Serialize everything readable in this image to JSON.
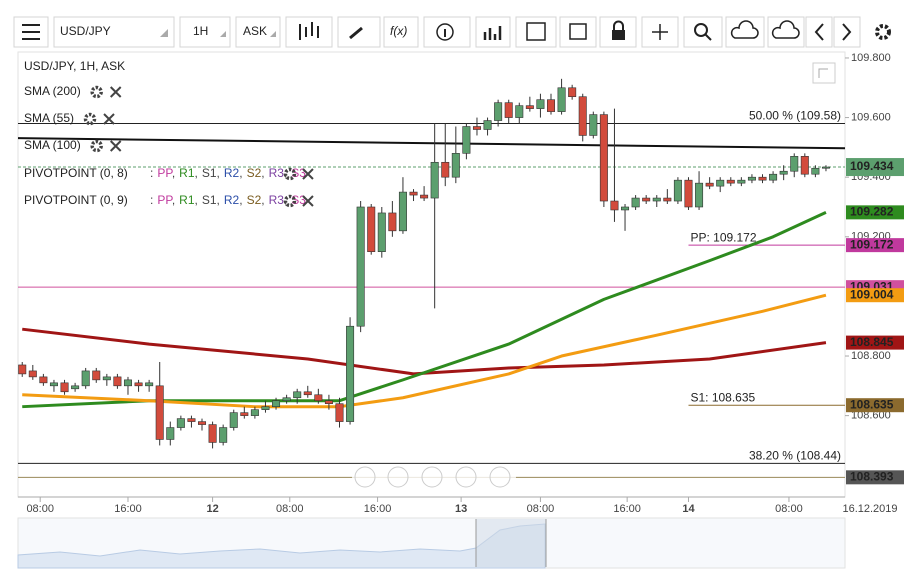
{
  "toolbar": {
    "symbol": "USD/JPY",
    "interval": "1H",
    "price_side": "ASK",
    "function_label": "f(x)"
  },
  "legend": {
    "heading": "USD/JPY, 1H, ASK",
    "indicators": [
      {
        "label": "SMA (200)",
        "color": "#a01515"
      },
      {
        "label": "SMA (55)",
        "color": "#2e8b1f"
      },
      {
        "label": "SMA (100)",
        "color": "#f39c12"
      }
    ],
    "pivots": [
      {
        "label": "PIVOTPOINT (0, 8)"
      },
      {
        "label": "PIVOTPOINT (0, 9)"
      }
    ],
    "pivot_lead": ":",
    "pivot_separator": ",",
    "pivot_levels": [
      {
        "name": "PP",
        "color": "#c0399d"
      },
      {
        "name": "R1",
        "color": "#2e8b1f"
      },
      {
        "name": "S1",
        "color": "#444444"
      },
      {
        "name": "R2",
        "color": "#2b4ea8"
      },
      {
        "name": "S2",
        "color": "#7a5c20"
      },
      {
        "name": "R3",
        "color": "#7b3fa0"
      },
      {
        "name": "S3",
        "color": "#c0399d"
      }
    ]
  },
  "chart_data": {
    "type": "candlestick",
    "up_color": "#5c9f6e",
    "down_color": "#d24b3c",
    "open": [
      108.77,
      108.75,
      108.73,
      108.7,
      108.71,
      108.69,
      108.7,
      108.75,
      108.72,
      108.73,
      108.7,
      108.71,
      108.7,
      108.7,
      108.52,
      108.56,
      108.59,
      108.58,
      108.57,
      108.51,
      108.56,
      108.61,
      108.6,
      108.62,
      108.63,
      108.65,
      108.66,
      108.68,
      108.67,
      108.65,
      108.64,
      108.58,
      108.9,
      109.3,
      109.15,
      109.28,
      109.22,
      109.35,
      109.34,
      109.33,
      109.45,
      109.4,
      109.48,
      109.57,
      109.56,
      109.59,
      109.65,
      109.6,
      109.64,
      109.63,
      109.66,
      109.62,
      109.7,
      109.67,
      109.54,
      109.61,
      109.32,
      109.29,
      109.3,
      109.33,
      109.32,
      109.33,
      109.32,
      109.39,
      109.3,
      109.38,
      109.37,
      109.39,
      109.38,
      109.39,
      109.4,
      109.39,
      109.41,
      109.42,
      109.47,
      109.41,
      109.43
    ],
    "high": [
      108.78,
      108.77,
      108.74,
      108.72,
      108.72,
      108.71,
      108.76,
      108.76,
      108.74,
      108.74,
      108.73,
      108.72,
      108.72,
      108.78,
      108.58,
      108.6,
      108.6,
      108.59,
      108.58,
      108.57,
      108.62,
      108.63,
      108.63,
      108.65,
      108.66,
      108.67,
      108.69,
      108.7,
      108.69,
      108.67,
      108.66,
      108.93,
      109.32,
      109.31,
      109.3,
      109.32,
      109.4,
      109.36,
      109.37,
      109.58,
      109.58,
      109.57,
      109.58,
      109.6,
      109.6,
      109.66,
      109.66,
      109.65,
      109.67,
      109.68,
      109.68,
      109.73,
      109.71,
      109.68,
      109.62,
      109.62,
      109.63,
      109.31,
      109.34,
      109.34,
      109.34,
      109.36,
      109.4,
      109.4,
      109.42,
      109.4,
      109.4,
      109.4,
      109.4,
      109.41,
      109.41,
      109.42,
      109.44,
      109.48,
      109.48,
      109.44,
      109.44
    ],
    "low": [
      108.73,
      108.72,
      108.7,
      108.68,
      108.67,
      108.68,
      108.69,
      108.71,
      108.7,
      108.69,
      108.67,
      108.68,
      108.68,
      108.5,
      108.5,
      108.55,
      108.56,
      108.55,
      108.49,
      108.5,
      108.55,
      108.59,
      108.59,
      108.61,
      108.62,
      108.64,
      108.64,
      108.66,
      108.64,
      108.62,
      108.56,
      108.57,
      108.88,
      109.14,
      109.13,
      109.2,
      109.21,
      109.32,
      109.32,
      108.96,
      109.37,
      109.38,
      109.46,
      109.54,
      109.54,
      109.57,
      109.58,
      109.58,
      109.62,
      109.6,
      109.61,
      109.61,
      109.66,
      109.52,
      109.53,
      109.3,
      109.25,
      109.22,
      109.29,
      109.31,
      109.3,
      109.31,
      109.31,
      109.29,
      109.29,
      109.36,
      109.35,
      109.37,
      109.37,
      109.38,
      109.38,
      109.38,
      109.39,
      109.4,
      109.4,
      109.4,
      109.42
    ],
    "close": [
      108.74,
      108.73,
      108.71,
      108.71,
      108.68,
      108.7,
      108.75,
      108.72,
      108.73,
      108.7,
      108.72,
      108.7,
      108.71,
      108.52,
      108.56,
      108.59,
      108.58,
      108.57,
      108.51,
      108.56,
      108.61,
      108.6,
      108.62,
      108.63,
      108.65,
      108.66,
      108.68,
      108.67,
      108.65,
      108.64,
      108.58,
      108.9,
      109.3,
      109.15,
      109.28,
      109.22,
      109.35,
      109.34,
      109.33,
      109.45,
      109.4,
      109.48,
      109.57,
      109.56,
      109.59,
      109.65,
      109.6,
      109.64,
      109.63,
      109.66,
      109.62,
      109.7,
      109.67,
      109.54,
      109.61,
      109.32,
      109.29,
      109.3,
      109.33,
      109.32,
      109.33,
      109.32,
      109.39,
      109.3,
      109.38,
      109.37,
      109.39,
      109.38,
      109.39,
      109.4,
      109.39,
      109.41,
      109.42,
      109.47,
      109.41,
      109.43,
      109.434
    ],
    "smas": [
      {
        "name": "SMA (200)",
        "color": "#a01515",
        "x": [
          0,
          12,
          27,
          37,
          46,
          55,
          65,
          76
        ],
        "values": [
          108.89,
          108.84,
          108.79,
          108.74,
          108.76,
          108.77,
          108.79,
          108.845
        ]
      },
      {
        "name": "SMA (55)",
        "color": "#2e8b1f",
        "x": [
          0,
          12,
          30,
          36,
          46,
          55,
          65,
          71,
          76
        ],
        "values": [
          108.63,
          108.65,
          108.65,
          108.72,
          108.84,
          108.99,
          109.12,
          109.2,
          109.282
        ]
      },
      {
        "name": "SMA (100)",
        "color": "#f39c12",
        "x": [
          0,
          12,
          22,
          30,
          36,
          46,
          51,
          60,
          70,
          76
        ],
        "values": [
          108.67,
          108.65,
          108.63,
          108.63,
          108.66,
          108.74,
          108.8,
          108.87,
          108.95,
          109.004
        ]
      }
    ],
    "trendline": {
      "x": [
        -0.4,
        77.8
      ],
      "values": [
        109.531,
        109.497
      ],
      "color": "#111111"
    },
    "levels": [
      {
        "value": 109.58,
        "label": "50.00 % (109.58)",
        "color": "#222222",
        "start": -0.4
      },
      {
        "value": 109.172,
        "label": "PP: 109.172",
        "color": "#c0399d",
        "start": 63
      },
      {
        "value": 109.031,
        "color": "#d0509e",
        "start": -0.4
      },
      {
        "value": 108.635,
        "label": "S1: 108.635",
        "color": "#8b6a2e",
        "start": 63
      },
      {
        "value": 108.44,
        "label": "38.20 % (108.44)",
        "color": "#222222",
        "start": -0.4
      },
      {
        "value": 108.393,
        "color": "#9a8a5a",
        "start": -0.4
      }
    ],
    "current_price": 109.434,
    "price_tags": [
      {
        "value": 109.434,
        "color": "#5c9f6e"
      },
      {
        "value": 109.282,
        "color": "#2e8b1f"
      },
      {
        "value": 109.172,
        "color": "#c0399d"
      },
      {
        "value": 109.031,
        "color": "#d0509e"
      },
      {
        "value": 109.004,
        "color": "#f39c12"
      },
      {
        "value": 108.845,
        "color": "#a01515"
      },
      {
        "value": 108.635,
        "color": "#8b6a2e"
      },
      {
        "value": 108.393,
        "color": "#555555"
      }
    ],
    "xlim": [
      -0.4,
      77.8
    ],
    "xticks": [
      {
        "value": 1.7,
        "label": "08:00"
      },
      {
        "value": 10,
        "label": "16:00"
      },
      {
        "value": 18,
        "label": "12"
      },
      {
        "value": 25.3,
        "label": "08:00"
      },
      {
        "value": 33.6,
        "label": "16:00"
      },
      {
        "value": 41.5,
        "label": "13"
      },
      {
        "value": 49,
        "label": "08:00"
      },
      {
        "value": 57.2,
        "label": "16:00"
      },
      {
        "value": 63,
        "label": "14"
      },
      {
        "value": 72.5,
        "label": "08:00"
      }
    ],
    "date_label": "16.12.2019",
    "ylim": [
      108.327,
      109.82
    ],
    "yticks": [
      {
        "value": 109.8,
        "label": "109.800"
      },
      {
        "value": 109.6,
        "label": "109.600"
      },
      {
        "value": 109.4,
        "label": "109.400"
      },
      {
        "value": 109.2,
        "label": "109.200"
      },
      {
        "value": 108.8,
        "label": "108.800"
      },
      {
        "value": 108.6,
        "label": "108.600"
      }
    ]
  }
}
